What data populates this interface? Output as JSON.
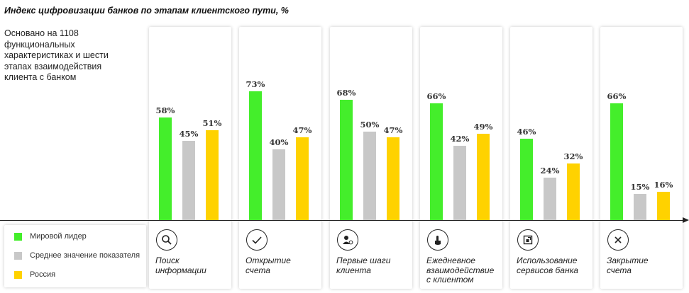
{
  "colors": {
    "leader": "#44EE2B",
    "average": "#C8C8C8",
    "russia": "#FFD200"
  },
  "legend": [
    {
      "label": "Мировой лидер",
      "color": "#44EE2B"
    },
    {
      "label": "Среднее значение показателя",
      "color": "#C8C8C8"
    },
    {
      "label": "Россия",
      "color": "#FFD200"
    }
  ],
  "chart_data": {
    "type": "bar",
    "title": "Индекс цифровизации банков по этапам клиентского пути, %",
    "note": "Основано на 1108 функциональных характеристиках и шести этапах взаимодействия клиента с банком",
    "categories": [
      "Поиск информации",
      "Открытие счета",
      "Первые шаги клиента",
      "Ежедневное взаимодействие с клиентом",
      "Использование сервисов банка",
      "Закрытие счета"
    ],
    "category_label_lines": [
      [
        "Поиск",
        "информации"
      ],
      [
        "Открытие",
        "счета"
      ],
      [
        "Первые шаги",
        "клиента"
      ],
      [
        "Ежедневное",
        "взаимодействие",
        "с клиентом"
      ],
      [
        "Использование",
        "сервисов банка"
      ],
      [
        "Закрытие",
        "счета"
      ]
    ],
    "category_icons": [
      "search-icon",
      "check-icon",
      "user-icon",
      "touch-icon",
      "app-icon",
      "close-icon"
    ],
    "series": [
      {
        "name": "Мировой лидер",
        "values": [
          58,
          73,
          68,
          66,
          46,
          66
        ],
        "labels": [
          "58%",
          "73%",
          "68%",
          "66%",
          "46%",
          "66%"
        ]
      },
      {
        "name": "Среднее значение показателя",
        "values": [
          45,
          40,
          50,
          42,
          24,
          15
        ],
        "labels": [
          "45%",
          "40%",
          "50%",
          "42%",
          "24%",
          "15%"
        ]
      },
      {
        "name": "Россия",
        "values": [
          51,
          47,
          47,
          49,
          32,
          16
        ],
        "labels": [
          "51%",
          "47%",
          "47%",
          "49%",
          "32%",
          "16%"
        ]
      }
    ],
    "ylim": [
      0,
      100
    ],
    "grid": false,
    "legend_position": "bottom-left"
  }
}
